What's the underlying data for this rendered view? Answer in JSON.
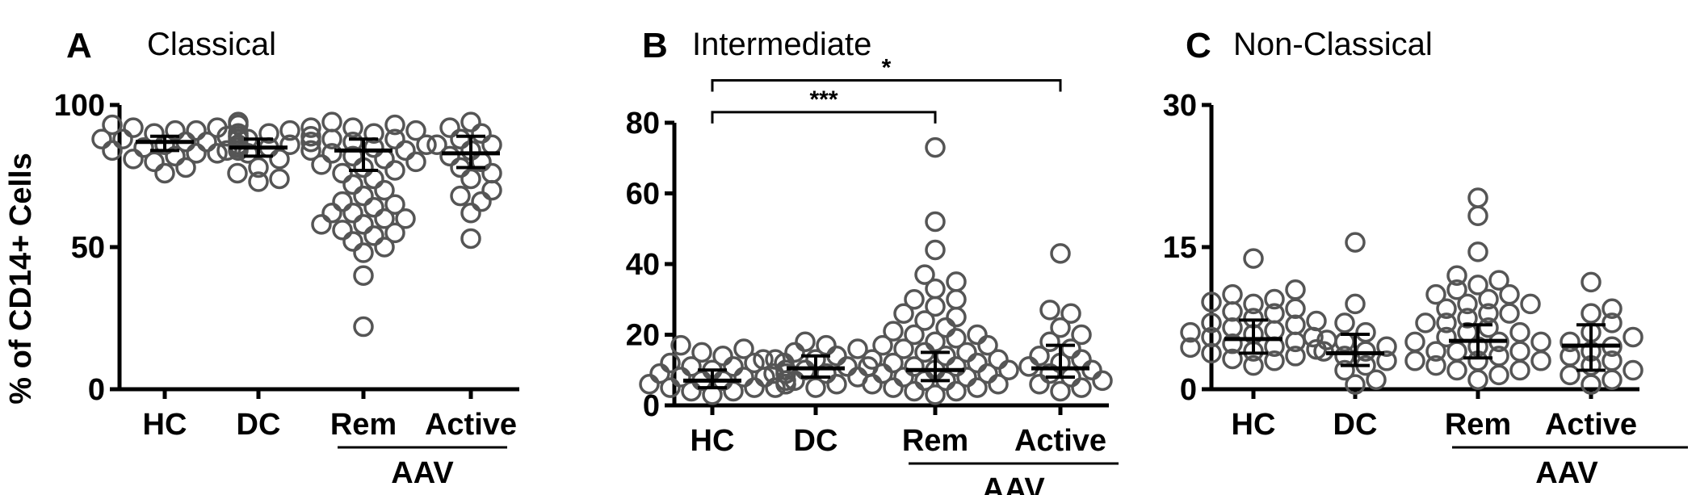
{
  "ylabel": "% of CD14+ Cells",
  "group_label": "AAV",
  "chart_data": [
    {
      "type": "scatter",
      "panel_letter": "A",
      "title": "Classical",
      "categories": [
        "HC",
        "DC",
        "Rem",
        "Active"
      ],
      "ylim": [
        0,
        100
      ],
      "yticks": [
        0,
        50,
        100
      ],
      "points": [
        [
          86,
          88,
          90,
          92,
          94,
          84,
          82,
          85,
          87,
          89,
          91,
          93,
          80,
          83,
          78,
          76,
          86,
          88,
          84,
          90,
          92,
          85,
          87,
          81,
          83,
          89,
          91,
          86,
          88,
          93
        ],
        [
          85,
          87,
          90,
          92,
          83,
          81,
          88,
          78,
          76,
          74,
          73,
          86,
          84,
          89,
          91
        ],
        [
          86,
          88,
          90,
          92,
          94,
          84,
          82,
          80,
          78,
          76,
          74,
          72,
          70,
          68,
          66,
          64,
          62,
          60,
          58,
          56,
          54,
          52,
          50,
          48,
          65,
          62,
          60,
          58,
          55,
          40,
          22,
          85,
          87,
          89,
          91,
          93,
          83,
          81,
          79,
          77,
          86,
          88,
          84
        ],
        [
          88,
          90,
          92,
          94,
          84,
          80,
          78,
          76,
          74,
          70,
          68,
          66,
          62,
          53,
          86,
          82
        ]
      ],
      "medians": [
        87,
        85,
        84,
        83
      ],
      "iqr": [
        [
          84,
          89
        ],
        [
          82,
          88
        ],
        [
          77,
          88
        ],
        [
          78,
          89
        ]
      ],
      "comparisons": []
    },
    {
      "type": "scatter",
      "panel_letter": "B",
      "title": "Intermediate",
      "categories": [
        "HC",
        "DC",
        "Rem",
        "Active"
      ],
      "ylim": [
        0,
        80
      ],
      "yticks": [
        0,
        20,
        40,
        60,
        80
      ],
      "points": [
        [
          3,
          4,
          5,
          5,
          6,
          6,
          7,
          7,
          8,
          8,
          9,
          9,
          10,
          10,
          11,
          12,
          13,
          14,
          15,
          16,
          17,
          4,
          6,
          8,
          10,
          12,
          5,
          7,
          9,
          11
        ],
        [
          6,
          7,
          8,
          9,
          10,
          11,
          12,
          13,
          14,
          15,
          16,
          17,
          18,
          9,
          11,
          13,
          5
        ],
        [
          3,
          4,
          5,
          6,
          7,
          8,
          9,
          10,
          11,
          12,
          13,
          14,
          15,
          16,
          17,
          18,
          19,
          20,
          21,
          22,
          24,
          26,
          28,
          30,
          33,
          35,
          37,
          44,
          52,
          73,
          5,
          7,
          9,
          11,
          13,
          15,
          17,
          20,
          25,
          30,
          4,
          6,
          8,
          10,
          12
        ],
        [
          4,
          5,
          7,
          8,
          9,
          10,
          11,
          12,
          13,
          14,
          16,
          18,
          20,
          22,
          26,
          27,
          43,
          6
        ]
      ],
      "medians": [
        7,
        10.5,
        10,
        10.5
      ],
      "iqr": [
        [
          5,
          10
        ],
        [
          8,
          14
        ],
        [
          7,
          15
        ],
        [
          8,
          17
        ]
      ],
      "comparisons": [
        {
          "from": 0,
          "to": 2,
          "label": "***",
          "y": 83
        },
        {
          "from": 0,
          "to": 3,
          "label": "*",
          "y": 92
        }
      ]
    },
    {
      "type": "scatter",
      "panel_letter": "C",
      "title": "Non-Classical",
      "categories": [
        "HC",
        "DC",
        "Rem",
        "Active"
      ],
      "ylim": [
        0,
        30
      ],
      "yticks": [
        0,
        15,
        30
      ],
      "points": [
        [
          2.5,
          3,
          3.5,
          4,
          4.5,
          5,
          5.5,
          6,
          6.5,
          7,
          7.5,
          8,
          8.5,
          9,
          9.5,
          10,
          10.5,
          13.8,
          3.2,
          4.2,
          5.2,
          6.2,
          7.2,
          8.2,
          9.2,
          4.8,
          5.8,
          6.8,
          3.8,
          4.4
        ],
        [
          0.5,
          1,
          2,
          3,
          3.5,
          4,
          4.5,
          5,
          5.5,
          6,
          7,
          9,
          15.5,
          2.5,
          4
        ],
        [
          1,
          1.5,
          2,
          2.5,
          3,
          3.5,
          4,
          4.5,
          5,
          5.5,
          6,
          6.5,
          7,
          7.5,
          8,
          8.5,
          9,
          9.5,
          10,
          10.5,
          11,
          11.5,
          12,
          14.5,
          18.3,
          20.2,
          3,
          4,
          5,
          6,
          7,
          8,
          9,
          10,
          2,
          3,
          4,
          5
        ],
        [
          0.5,
          1,
          1.5,
          2,
          2.5,
          3,
          3.5,
          4,
          5,
          6,
          7,
          8,
          8.5,
          11.3,
          4.5,
          5.5
        ]
      ],
      "medians": [
        5.3,
        3.8,
        5.1,
        4.6
      ],
      "iqr": [
        [
          3.8,
          7.3
        ],
        [
          2.5,
          5.8
        ],
        [
          3.3,
          6.8
        ],
        [
          2.0,
          6.8
        ]
      ],
      "comparisons": []
    }
  ]
}
